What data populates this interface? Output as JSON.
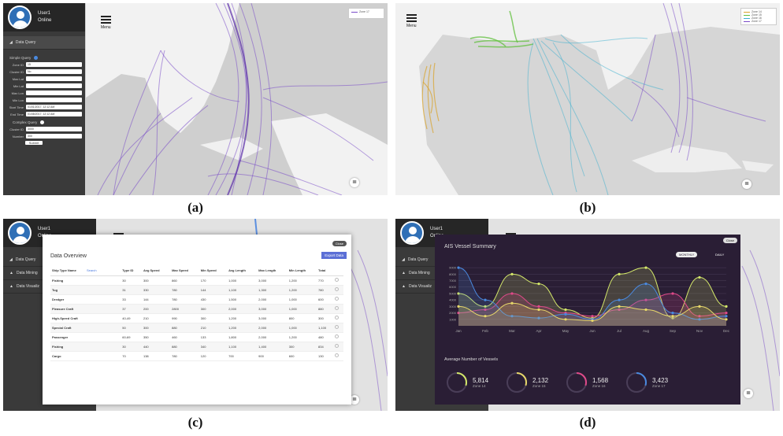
{
  "captions": {
    "a": "(a)",
    "b": "(b)",
    "c": "(c)",
    "d": "(d)"
  },
  "user": {
    "name": "User1",
    "status": "Online"
  },
  "menu_label": "Menu",
  "nav": {
    "data_query": "Data Query",
    "data_mining": "Data Mining",
    "data_visualization": "Data Visualiz"
  },
  "query_form": {
    "simple_query": "Simple Query",
    "complex_query": "Complex Query",
    "submit": "Submit",
    "fields": [
      {
        "label": "Zone ID",
        "value": "15"
      },
      {
        "label": "Cluster ID",
        "value": "No"
      },
      {
        "label": "Max Lat",
        "value": ""
      },
      {
        "label": "Min Lat",
        "value": ""
      },
      {
        "label": "Max Lon",
        "value": ""
      },
      {
        "label": "Min Lon",
        "value": ""
      },
      {
        "label": "Start Time",
        "value": "01/01/2017, 12:12 AM"
      },
      {
        "label": "End Time",
        "value": "01/08/2017, 12:12 AM"
      }
    ],
    "complex_fields": [
      {
        "label": "Cluster ID",
        "value": "3000"
      },
      {
        "label": "Number",
        "value": "300"
      }
    ]
  },
  "map_a_legend": [
    "Zone 17"
  ],
  "map_b_legend": [
    {
      "name": "Zone 14",
      "color": "#d9a22a"
    },
    {
      "name": "Zone 15",
      "color": "#5fbf3b"
    },
    {
      "name": "Zone 16",
      "color": "#3ab0d0"
    },
    {
      "name": "Zone 17",
      "color": "#7a4cc8"
    }
  ],
  "overview": {
    "title": "Data Overview",
    "close": "Close",
    "export": "Export Data",
    "search": "Search",
    "headers": [
      "Ship Type Name",
      "Type ID",
      "Avg Speed",
      "Max Speed",
      "Min Speed",
      "Avg Length",
      "Max Length",
      "Min Length",
      "Total"
    ],
    "rows": [
      [
        "Fishing",
        "30",
        "300",
        "860",
        "170",
        "1,000",
        "3,000",
        "1,200",
        "770"
      ],
      [
        "Tug",
        "31",
        "330",
        "780",
        "144",
        "1,100",
        "1,300",
        "1,200",
        "780"
      ],
      [
        "Dredger",
        "33",
        "144",
        "780",
        "430",
        "1,500",
        "2,000",
        "1,000",
        "600"
      ],
      [
        "Pleasure Craft",
        "37",
        "200",
        "2800",
        "300",
        "2,000",
        "3,000",
        "1,000",
        "880"
      ],
      [
        "High-Speed Craft",
        "40-49",
        "210",
        "990",
        "300",
        "1,200",
        "3,000",
        "800",
        "300"
      ],
      [
        "Special Craft",
        "50",
        "300",
        "880",
        "210",
        "1,200",
        "2,000",
        "1,000",
        "1,100"
      ],
      [
        "Passenger",
        "60-69",
        "350",
        "460",
        "133",
        "1,800",
        "2,000",
        "1,200",
        "480"
      ],
      [
        "Fishing",
        "30",
        "440",
        "880",
        "340",
        "1,100",
        "1,400",
        "300",
        "834"
      ],
      [
        "Cargo",
        "70",
        "138",
        "780",
        "120",
        "700",
        "900",
        "600",
        "130"
      ]
    ]
  },
  "summary": {
    "title": "AIS Vessel Summary",
    "close": "Close",
    "toggle_monthly": "MONTHLY",
    "toggle_daily": "DAILY",
    "avg_title": "Average Number of Vessels",
    "zones": [
      {
        "value": "5,814",
        "zone": "Zone 14",
        "color": "#d4e86a"
      },
      {
        "value": "2,132",
        "zone": "Zone 15",
        "color": "#e8d86a"
      },
      {
        "value": "1,568",
        "zone": "Zone 16",
        "color": "#e04a8a"
      },
      {
        "value": "3,423",
        "zone": "Zone 17",
        "color": "#4a8ae0"
      }
    ]
  },
  "chart_data": {
    "type": "area",
    "categories": [
      "Jan",
      "Feb",
      "Mar",
      "Apr",
      "May",
      "Jun",
      "Jul",
      "Aug",
      "Sep",
      "Nov",
      "Dec"
    ],
    "y_ticks": [
      "9000",
      "8000",
      "7000",
      "6000",
      "5000",
      "4000",
      "3000",
      "2000",
      "1000"
    ],
    "ylim": [
      0,
      9500
    ],
    "series": [
      {
        "color": "#d4e86a",
        "values": [
          5000,
          3000,
          8000,
          6500,
          2500,
          1200,
          8000,
          9000,
          1200,
          7500,
          3000
        ]
      },
      {
        "color": "#e04a8a",
        "values": [
          2000,
          2500,
          5000,
          3000,
          2000,
          1500,
          2500,
          4000,
          5000,
          1500,
          2000
        ]
      },
      {
        "color": "#4a8ae0",
        "values": [
          9000,
          4000,
          1500,
          1200,
          1800,
          1000,
          4000,
          6500,
          2000,
          1000,
          1500
        ]
      },
      {
        "color": "#e8d86a",
        "values": [
          3000,
          1500,
          3500,
          2500,
          1000,
          800,
          3000,
          2500,
          1500,
          3000,
          1000
        ]
      }
    ]
  }
}
